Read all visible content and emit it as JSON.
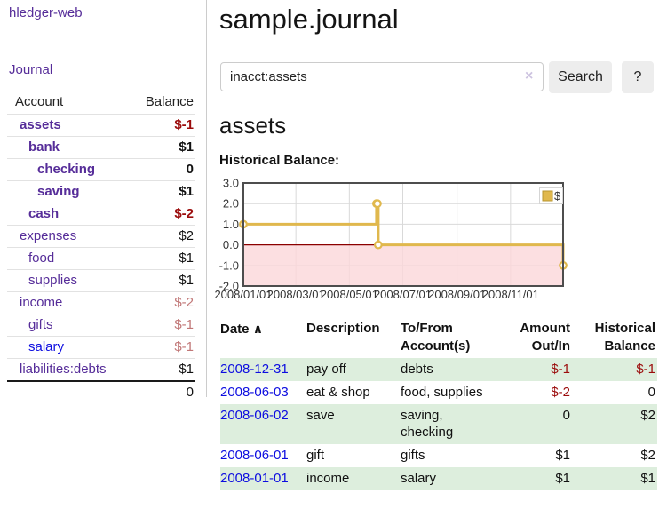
{
  "app": {
    "brand": "hledger-web",
    "nav_journal": "Journal"
  },
  "colors": {
    "brand_purple": "#562d99",
    "link_blue": "#0d0de0",
    "negative_strong": "#9b0c0c",
    "negative_muted": "#c17777",
    "row_stripe_green": "#ddeedd",
    "chart_gold": "#e0b84d",
    "negative_region_pink": "#fbd7da",
    "zero_line_red": "#8b0000"
  },
  "sidebar": {
    "headers": {
      "account": "Account",
      "balance": "Balance"
    },
    "accounts": [
      {
        "name": "assets",
        "balance": "$-1"
      },
      {
        "name": "bank",
        "balance": "$1"
      },
      {
        "name": "checking",
        "balance": "0"
      },
      {
        "name": "saving",
        "balance": "$1"
      },
      {
        "name": "cash",
        "balance": "$-2"
      },
      {
        "name": "expenses",
        "balance": "$2"
      },
      {
        "name": "food",
        "balance": "$1"
      },
      {
        "name": "supplies",
        "balance": "$1"
      },
      {
        "name": "income",
        "balance": "$-2"
      },
      {
        "name": "gifts",
        "balance": "$-1"
      },
      {
        "name": "salary",
        "balance": "$-1"
      },
      {
        "name": "liabilities:debts",
        "balance": "$1"
      }
    ],
    "total": "0"
  },
  "header": {
    "title": "sample.journal"
  },
  "search": {
    "query": "inacct:assets",
    "clear_icon": "×",
    "button_label": "Search",
    "help_label": "?"
  },
  "account_page": {
    "heading": "assets",
    "chart_label": "Historical Balance:"
  },
  "chart_data": {
    "type": "line",
    "subtype": "step-after",
    "legend": "$",
    "legend_position": "top-right",
    "xlim": [
      "2008-01-01",
      "2008-12-31"
    ],
    "ylim": [
      -2,
      3
    ],
    "yticks": [
      3,
      2,
      1,
      0,
      -1,
      -2
    ],
    "xticks": [
      {
        "date": "2008-01-01",
        "label": "2008/01/01"
      },
      {
        "date": "2008-03-01",
        "label": "2008/03/01"
      },
      {
        "date": "2008-05-01",
        "label": "2008/05/01"
      },
      {
        "date": "2008-07-01",
        "label": "2008/07/01"
      },
      {
        "date": "2008-09-01",
        "label": "2008/09/01"
      },
      {
        "date": "2008-11-01",
        "label": "2008/11/01"
      }
    ],
    "series": [
      {
        "name": "$",
        "points": [
          [
            "2008-01-01",
            1
          ],
          [
            "2008-06-01",
            2
          ],
          [
            "2008-06-02",
            2
          ],
          [
            "2008-06-03",
            0
          ],
          [
            "2008-12-31",
            -1
          ]
        ]
      }
    ],
    "negative_region_shaded": true,
    "grid": true
  },
  "register": {
    "headers": {
      "date": "Date",
      "sort_icon": "∧",
      "description": "Description",
      "accounts": "To/From Account(s)",
      "amount": "Amount Out/In",
      "balance": "Historical Balance"
    },
    "rows": [
      {
        "date": "2008-12-31",
        "description": "pay off",
        "accounts": "debts",
        "amount": "$-1",
        "balance": "$-1"
      },
      {
        "date": "2008-06-03",
        "description": "eat & shop",
        "accounts": "food, supplies",
        "amount": "$-2",
        "balance": "0"
      },
      {
        "date": "2008-06-02",
        "description": "save",
        "accounts": "saving,\nchecking",
        "amount": "0",
        "balance": "$2"
      },
      {
        "date": "2008-06-01",
        "description": "gift",
        "accounts": "gifts",
        "amount": "$1",
        "balance": "$2"
      },
      {
        "date": "2008-01-01",
        "description": "income",
        "accounts": "salary",
        "amount": "$1",
        "balance": "$1"
      }
    ]
  }
}
